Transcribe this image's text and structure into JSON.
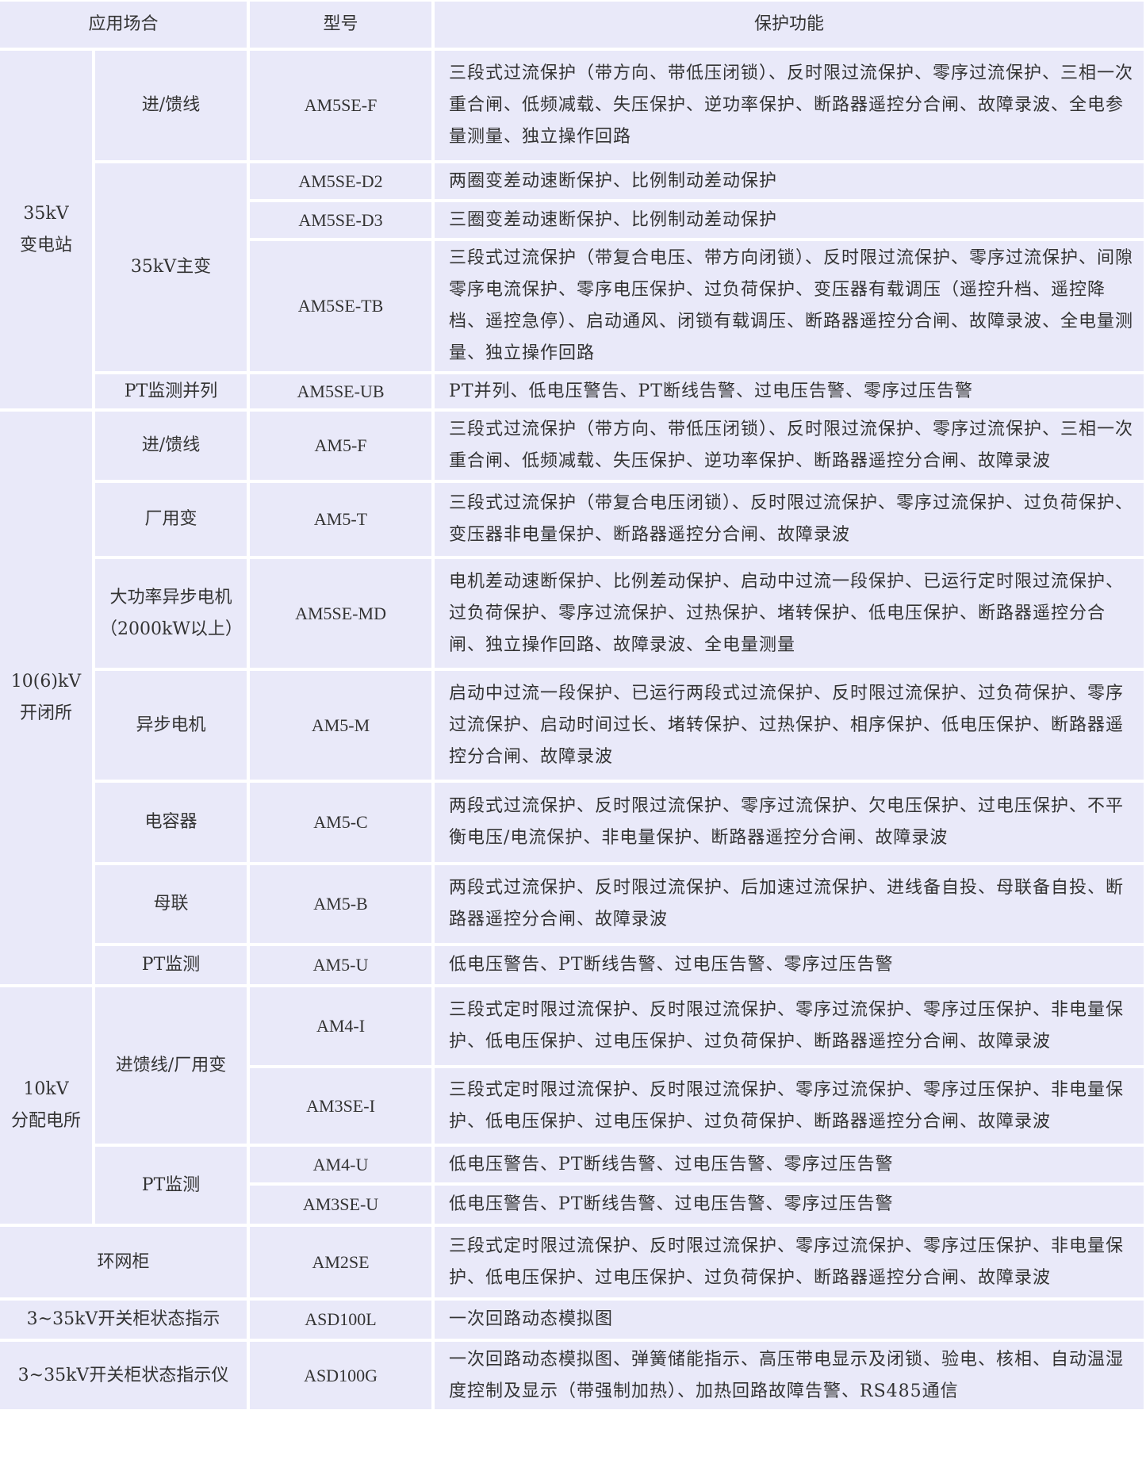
{
  "header": {
    "scene": "应用场合",
    "model": "型号",
    "function": "保护功能"
  },
  "groups": {
    "g35": "35kV\n变电站",
    "g106": "10(6)kV\n开闭所",
    "g10": "10kV\n分配电所",
    "ring": "环网柜",
    "ind": "3~35kV开关柜状态指示",
    "indi": "3~35kV开关柜状态指示仪"
  },
  "subs": {
    "feeder35": "进/馈线",
    "main35": "35kV主变",
    "pt35": "PT监测并列",
    "feeder106": "进/馈线",
    "aux106": "厂用变",
    "bigmotor": "大功率异步电机（2000kW以上）",
    "motor": "异步电机",
    "cap": "电容器",
    "bus": "母联",
    "pt106": "PT监测",
    "feeder10": "进馈线/厂用变",
    "pt10": "PT监测"
  },
  "rows": [
    {
      "model": "AM5SE-F",
      "desc": "三段式过流保护（带方向、带低压闭锁）、反时限过流保护、零序过流保护、三相一次重合闸、低频减载、失压保护、逆功率保护、断路器遥控分合闸、故障录波、全电参量测量、独立操作回路"
    },
    {
      "model": "AM5SE-D2",
      "desc": "两圈变差动速断保护、比例制动差动保护"
    },
    {
      "model": "AM5SE-D3",
      "desc": "三圈变差动速断保护、比例制动差动保护"
    },
    {
      "model": "AM5SE-TB",
      "desc": "三段式过流保护（带复合电压、带方向闭锁）、反时限过流保护、零序过流保护、间隙零序电流保护、零序电压保护、过负荷保护、变压器有载调压（遥控升档、遥控降档、遥控急停）、启动通风、闭锁有载调压、断路器遥控分合闸、故障录波、全电量测量、独立操作回路"
    },
    {
      "model": "AM5SE-UB",
      "desc": "PT并列、低电压警告、PT断线告警、过电压告警、零序过压告警"
    },
    {
      "model": "AM5-F",
      "desc": "三段式过流保护（带方向、带低压闭锁）、反时限过流保护、零序过流保护、三相一次重合闸、低频减载、失压保护、逆功率保护、断路器遥控分合闸、故障录波"
    },
    {
      "model": "AM5-T",
      "desc": "三段式过流保护（带复合电压闭锁）、反时限过流保护、零序过流保护、过负荷保护、变压器非电量保护、断路器遥控分合闸、故障录波"
    },
    {
      "model": "AM5SE-MD",
      "desc": "电机差动速断保护、比例差动保护、启动中过流一段保护、已运行定时限过流保护、过负荷保护、零序过流保护、过热保护、堵转保护、低电压保护、断路器遥控分合闸、独立操作回路、故障录波、全电量测量"
    },
    {
      "model": "AM5-M",
      "desc": "启动中过流一段保护、已运行两段式过流保护、反时限过流保护、过负荷保护、零序过流保护、启动时间过长、堵转保护、过热保护、相序保护、低电压保护、断路器遥控分合闸、故障录波"
    },
    {
      "model": "AM5-C",
      "desc": "两段式过流保护、反时限过流保护、零序过流保护、欠电压保护、过电压保护、不平衡电压/电流保护、非电量保护、断路器遥控分合闸、故障录波"
    },
    {
      "model": "AM5-B",
      "desc": "两段式过流保护、反时限过流保护、后加速过流保护、进线备自投、母联备自投、断路器遥控分合闸、故障录波"
    },
    {
      "model": "AM5-U",
      "desc": "低电压警告、PT断线告警、过电压告警、零序过压告警"
    },
    {
      "model": "AM4-I",
      "desc": "三段式定时限过流保护、反时限过流保护、零序过流保护、零序过压保护、非电量保护、低电压保护、过电压保护、过负荷保护、断路器遥控分合闸、故障录波"
    },
    {
      "model": "AM3SE-I",
      "desc": "三段式定时限过流保护、反时限过流保护、零序过流保护、零序过压保护、非电量保护、低电压保护、过电压保护、过负荷保护、断路器遥控分合闸、故障录波"
    },
    {
      "model": "AM4-U",
      "desc": "低电压警告、PT断线告警、过电压告警、零序过压告警"
    },
    {
      "model": "AM3SE-U",
      "desc": "低电压警告、PT断线告警、过电压告警、零序过压告警"
    },
    {
      "model": "AM2SE",
      "desc": "三段式定时限过流保护、反时限过流保护、零序过流保护、零序过压保护、非电量保护、低电压保护、过电压保护、过负荷保护、断路器遥控分合闸、故障录波"
    },
    {
      "model": "ASD100L",
      "desc": "一次回路动态模拟图"
    },
    {
      "model": "ASD100G",
      "desc": "一次回路动态模拟图、弹簧储能指示、高压带电显示及闭锁、验电、核相、自动温湿度控制及显示（带强制加热）、加热回路故障告警、RS485通信"
    }
  ]
}
